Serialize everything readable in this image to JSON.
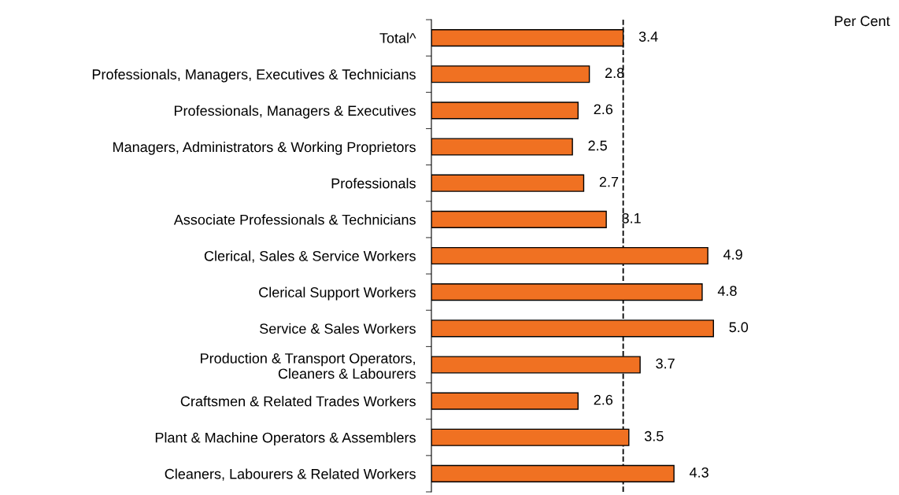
{
  "chart_data": {
    "type": "bar",
    "orientation": "horizontal",
    "categories": [
      "Total^",
      "Professionals, Managers, Executives & Technicians",
      "Professionals, Managers & Executives",
      "Managers, Administrators & Working Proprietors",
      "Professionals",
      "Associate Professionals & Technicians",
      "Clerical, Sales & Service Workers",
      "Clerical Support Workers",
      "Service & Sales Workers",
      "Production & Transport Operators,\nCleaners & Labourers",
      "Craftsmen & Related Trades Workers",
      "Plant & Machine Operators & Assemblers",
      "Cleaners, Labourers & Related Workers"
    ],
    "values": [
      3.4,
      2.8,
      2.6,
      2.5,
      2.7,
      3.1,
      4.9,
      4.8,
      5.0,
      3.7,
      2.6,
      3.5,
      4.3
    ],
    "color": "#f07122",
    "value_labels": [
      "3.4",
      "2.8",
      "2.6",
      "2.5",
      "2.7",
      "3.1",
      "4.9",
      "4.8",
      "5.0",
      "3.7",
      "2.6",
      "3.5",
      "4.3"
    ],
    "tick_labels": "y",
    "grid": false,
    "legend": false,
    "ref_lines": [
      {
        "axis": "x",
        "value": 3.4,
        "color": "#000000",
        "line_style": "dashed"
      }
    ],
    "annotations": [
      "Per Cent"
    ]
  }
}
